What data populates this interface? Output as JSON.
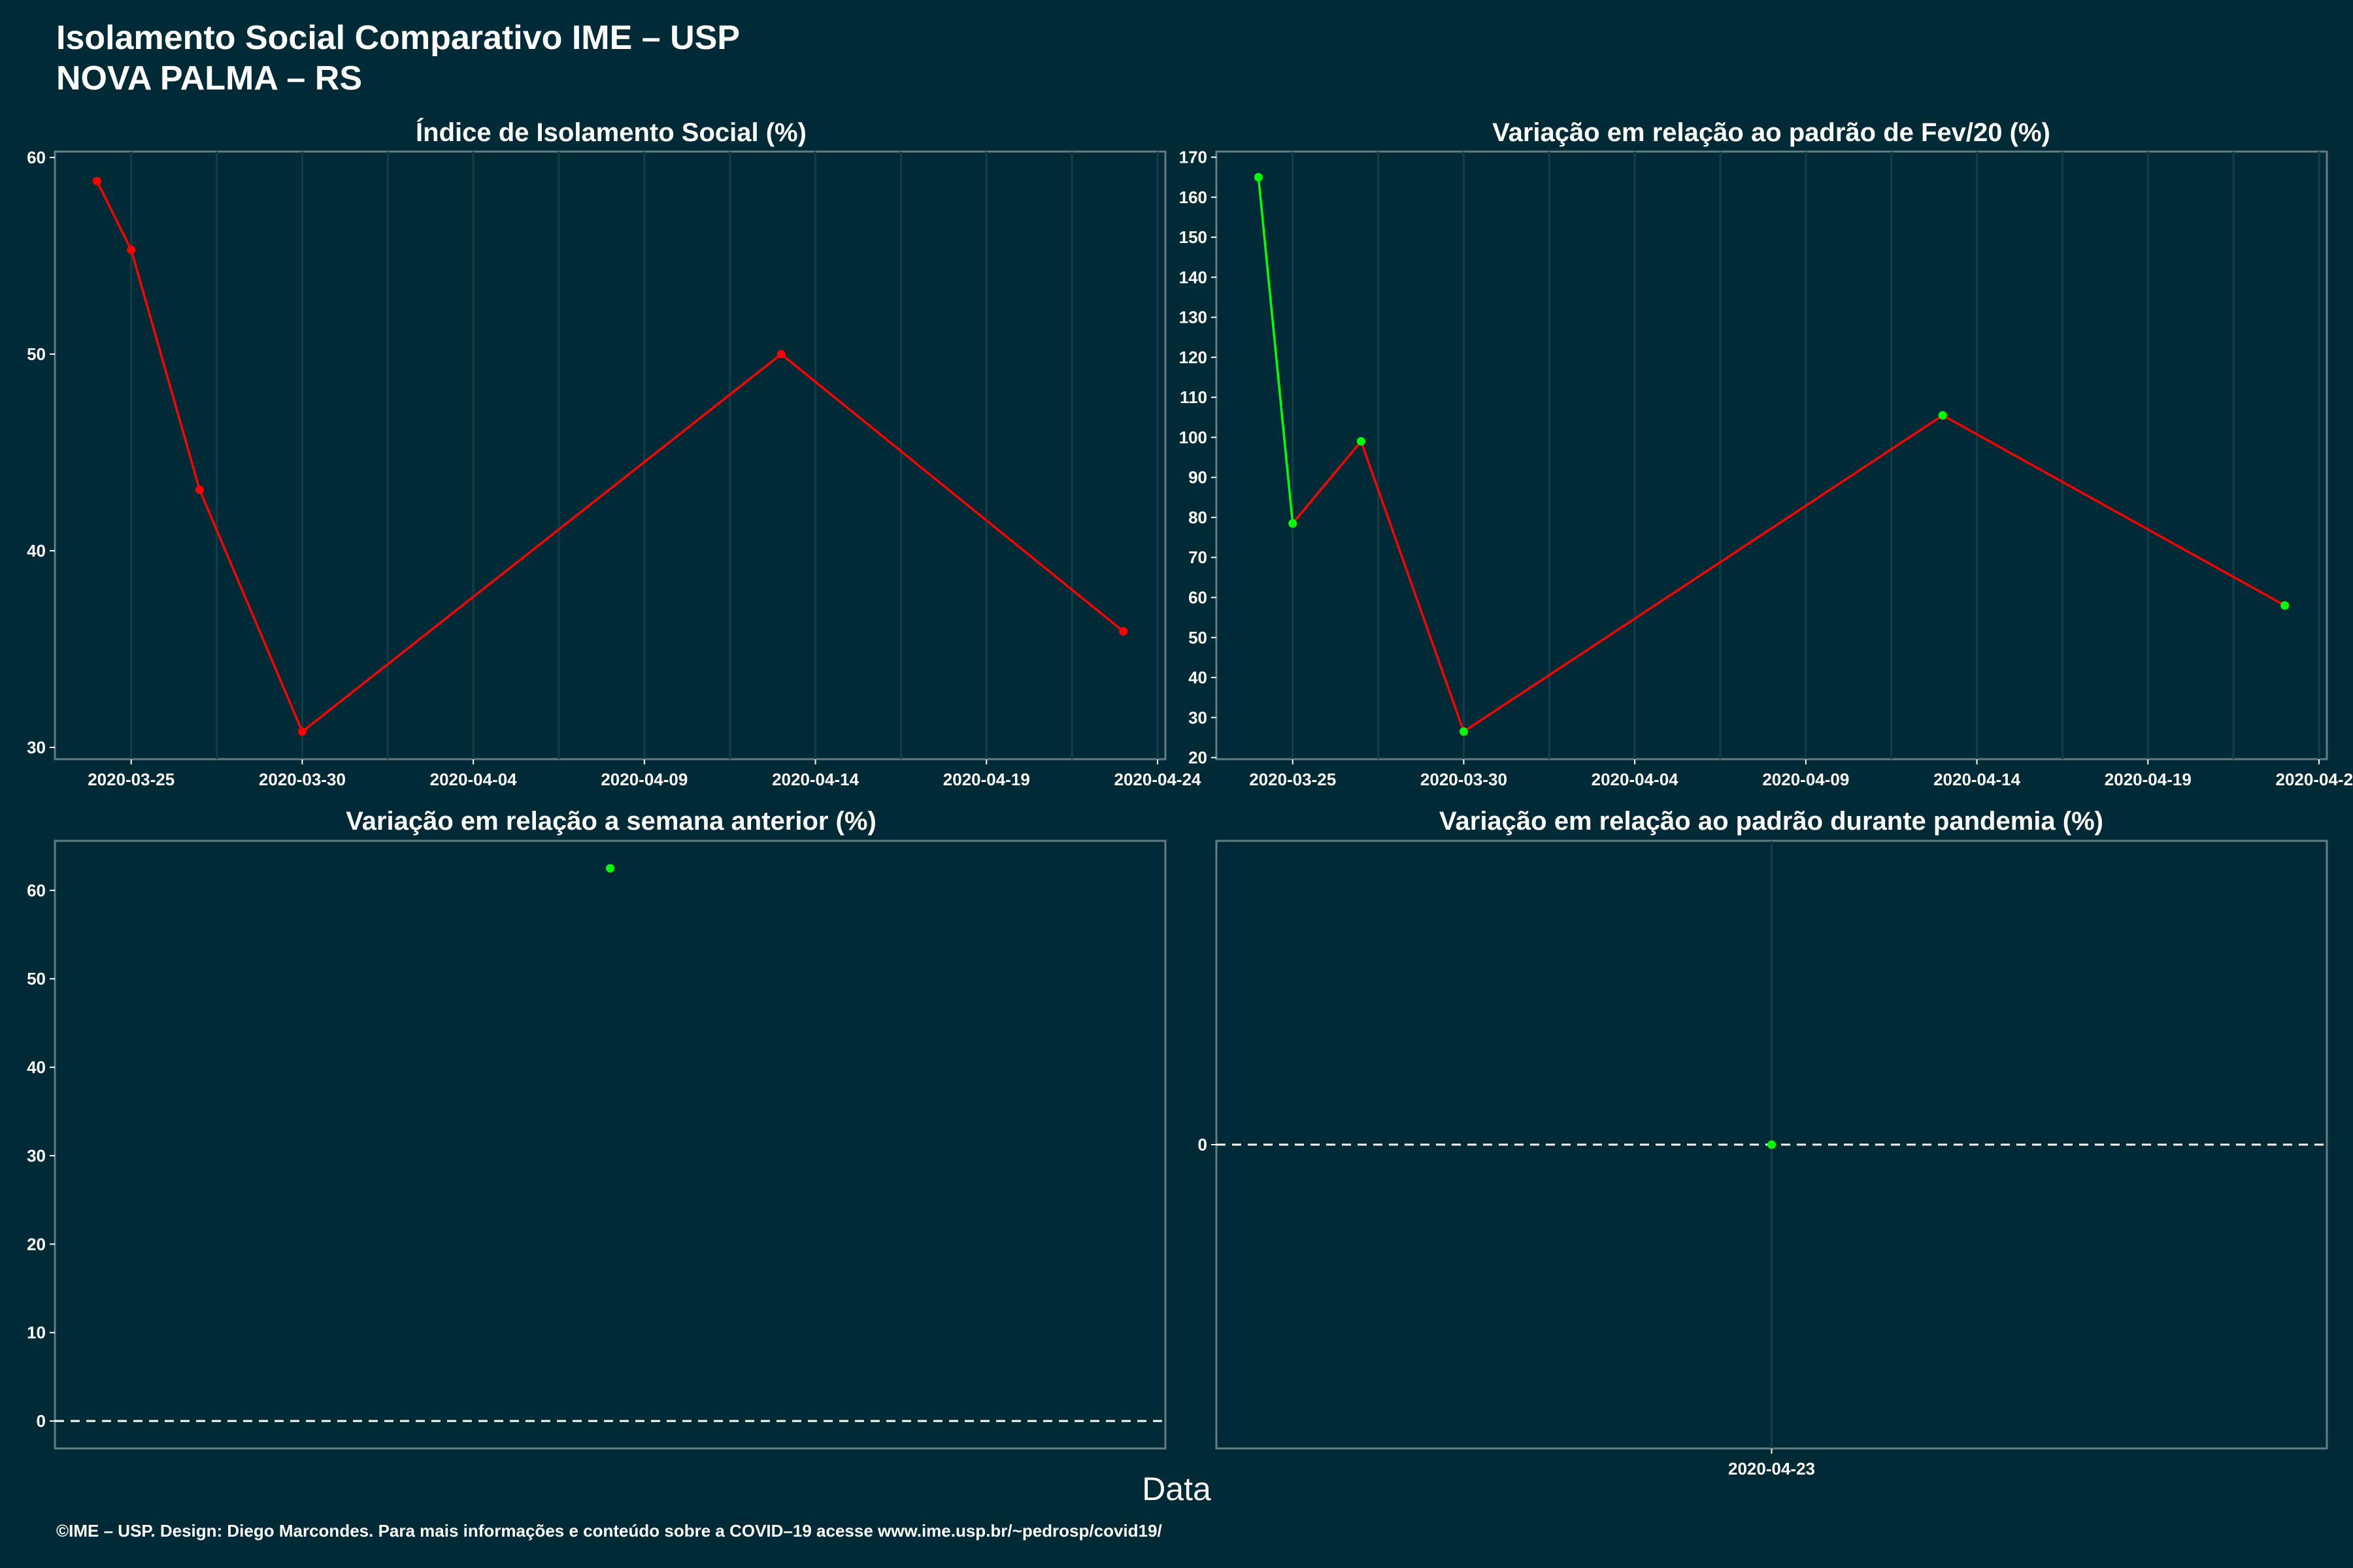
{
  "title_line1": "Isolamento Social Comparativo IME – USP",
  "title_line2": "NOVA PALMA – RS",
  "x_axis_label": "Data",
  "footer": "©IME – USP. Design: Diego Marcondes. Para mais informações e conteúdo sobre a COVID–19 acesse www.ime.usp.br/~pedrosp/covid19/",
  "colors": {
    "background": "#002b36",
    "decrease": "#ff0000",
    "increase": "#00ff00",
    "text": "#ffffff"
  },
  "chart_data": [
    {
      "type": "line",
      "title": "Índice de Isolamento Social (%)",
      "x": [
        "2020-03-24",
        "2020-03-25",
        "2020-03-27",
        "2020-03-30",
        "2020-04-13",
        "2020-04-23"
      ],
      "y": [
        58.8,
        55.3,
        43.1,
        30.8,
        50.0,
        35.9
      ],
      "point_colors": [
        "#ff0000",
        "#ff0000",
        "#ff0000",
        "#ff0000",
        "#ff0000",
        "#ff0000"
      ],
      "xticks": [
        "2020-03-25",
        "2020-03-30",
        "2020-04-04",
        "2020-04-09",
        "2020-04-14",
        "2020-04-19",
        "2020-04-24"
      ],
      "yticks": [
        30,
        40,
        50,
        60
      ],
      "ylim": [
        29.4,
        60.3
      ],
      "xlim": [
        "2020-03-23",
        "2020-04-24"
      ]
    },
    {
      "type": "line",
      "title": "Variação em relação ao padrão de Fev/20 (%)",
      "x": [
        "2020-03-24",
        "2020-03-25",
        "2020-03-27",
        "2020-03-30",
        "2020-04-13",
        "2020-04-23"
      ],
      "y": [
        165,
        78.5,
        99,
        26.5,
        105.5,
        58
      ],
      "point_colors": [
        "#00ff00",
        "#00ff00",
        "#00ff00",
        "#00ff00",
        "#00ff00",
        "#00ff00"
      ],
      "segment_colors": [
        "#00ff00",
        "#ff0000",
        "#ff0000",
        "#ff0000",
        "#ff0000"
      ],
      "xticks": [
        "2020-03-25",
        "2020-03-30",
        "2020-04-04",
        "2020-04-09",
        "2020-04-14",
        "2020-04-19",
        "2020-04-24"
      ],
      "yticks": [
        20,
        30,
        40,
        50,
        60,
        70,
        80,
        90,
        100,
        110,
        120,
        130,
        140,
        150,
        160,
        170
      ],
      "ylim": [
        19.6,
        171.4
      ],
      "xlim": [
        "2020-03-23",
        "2020-04-24"
      ]
    },
    {
      "type": "scatter",
      "title": "Variação em relação a semana anterior (%)",
      "x": [
        "2020-04-23"
      ],
      "y": [
        62.5
      ],
      "point_colors": [
        "#00ff00"
      ],
      "xticks": [],
      "yticks": [
        0,
        10,
        20,
        30,
        40,
        50,
        60
      ],
      "ylim": [
        -3.1,
        65.6
      ],
      "reference_line": 0
    },
    {
      "type": "scatter",
      "title": "Variação em relação ao padrão durante pandemia (%)",
      "x": [
        "2020-04-23"
      ],
      "y": [
        0
      ],
      "point_colors": [
        "#00ff00"
      ],
      "xticks": [
        "2020-04-23"
      ],
      "yticks": [
        0
      ],
      "ylim": [
        -1,
        1
      ],
      "reference_line": 0
    }
  ]
}
